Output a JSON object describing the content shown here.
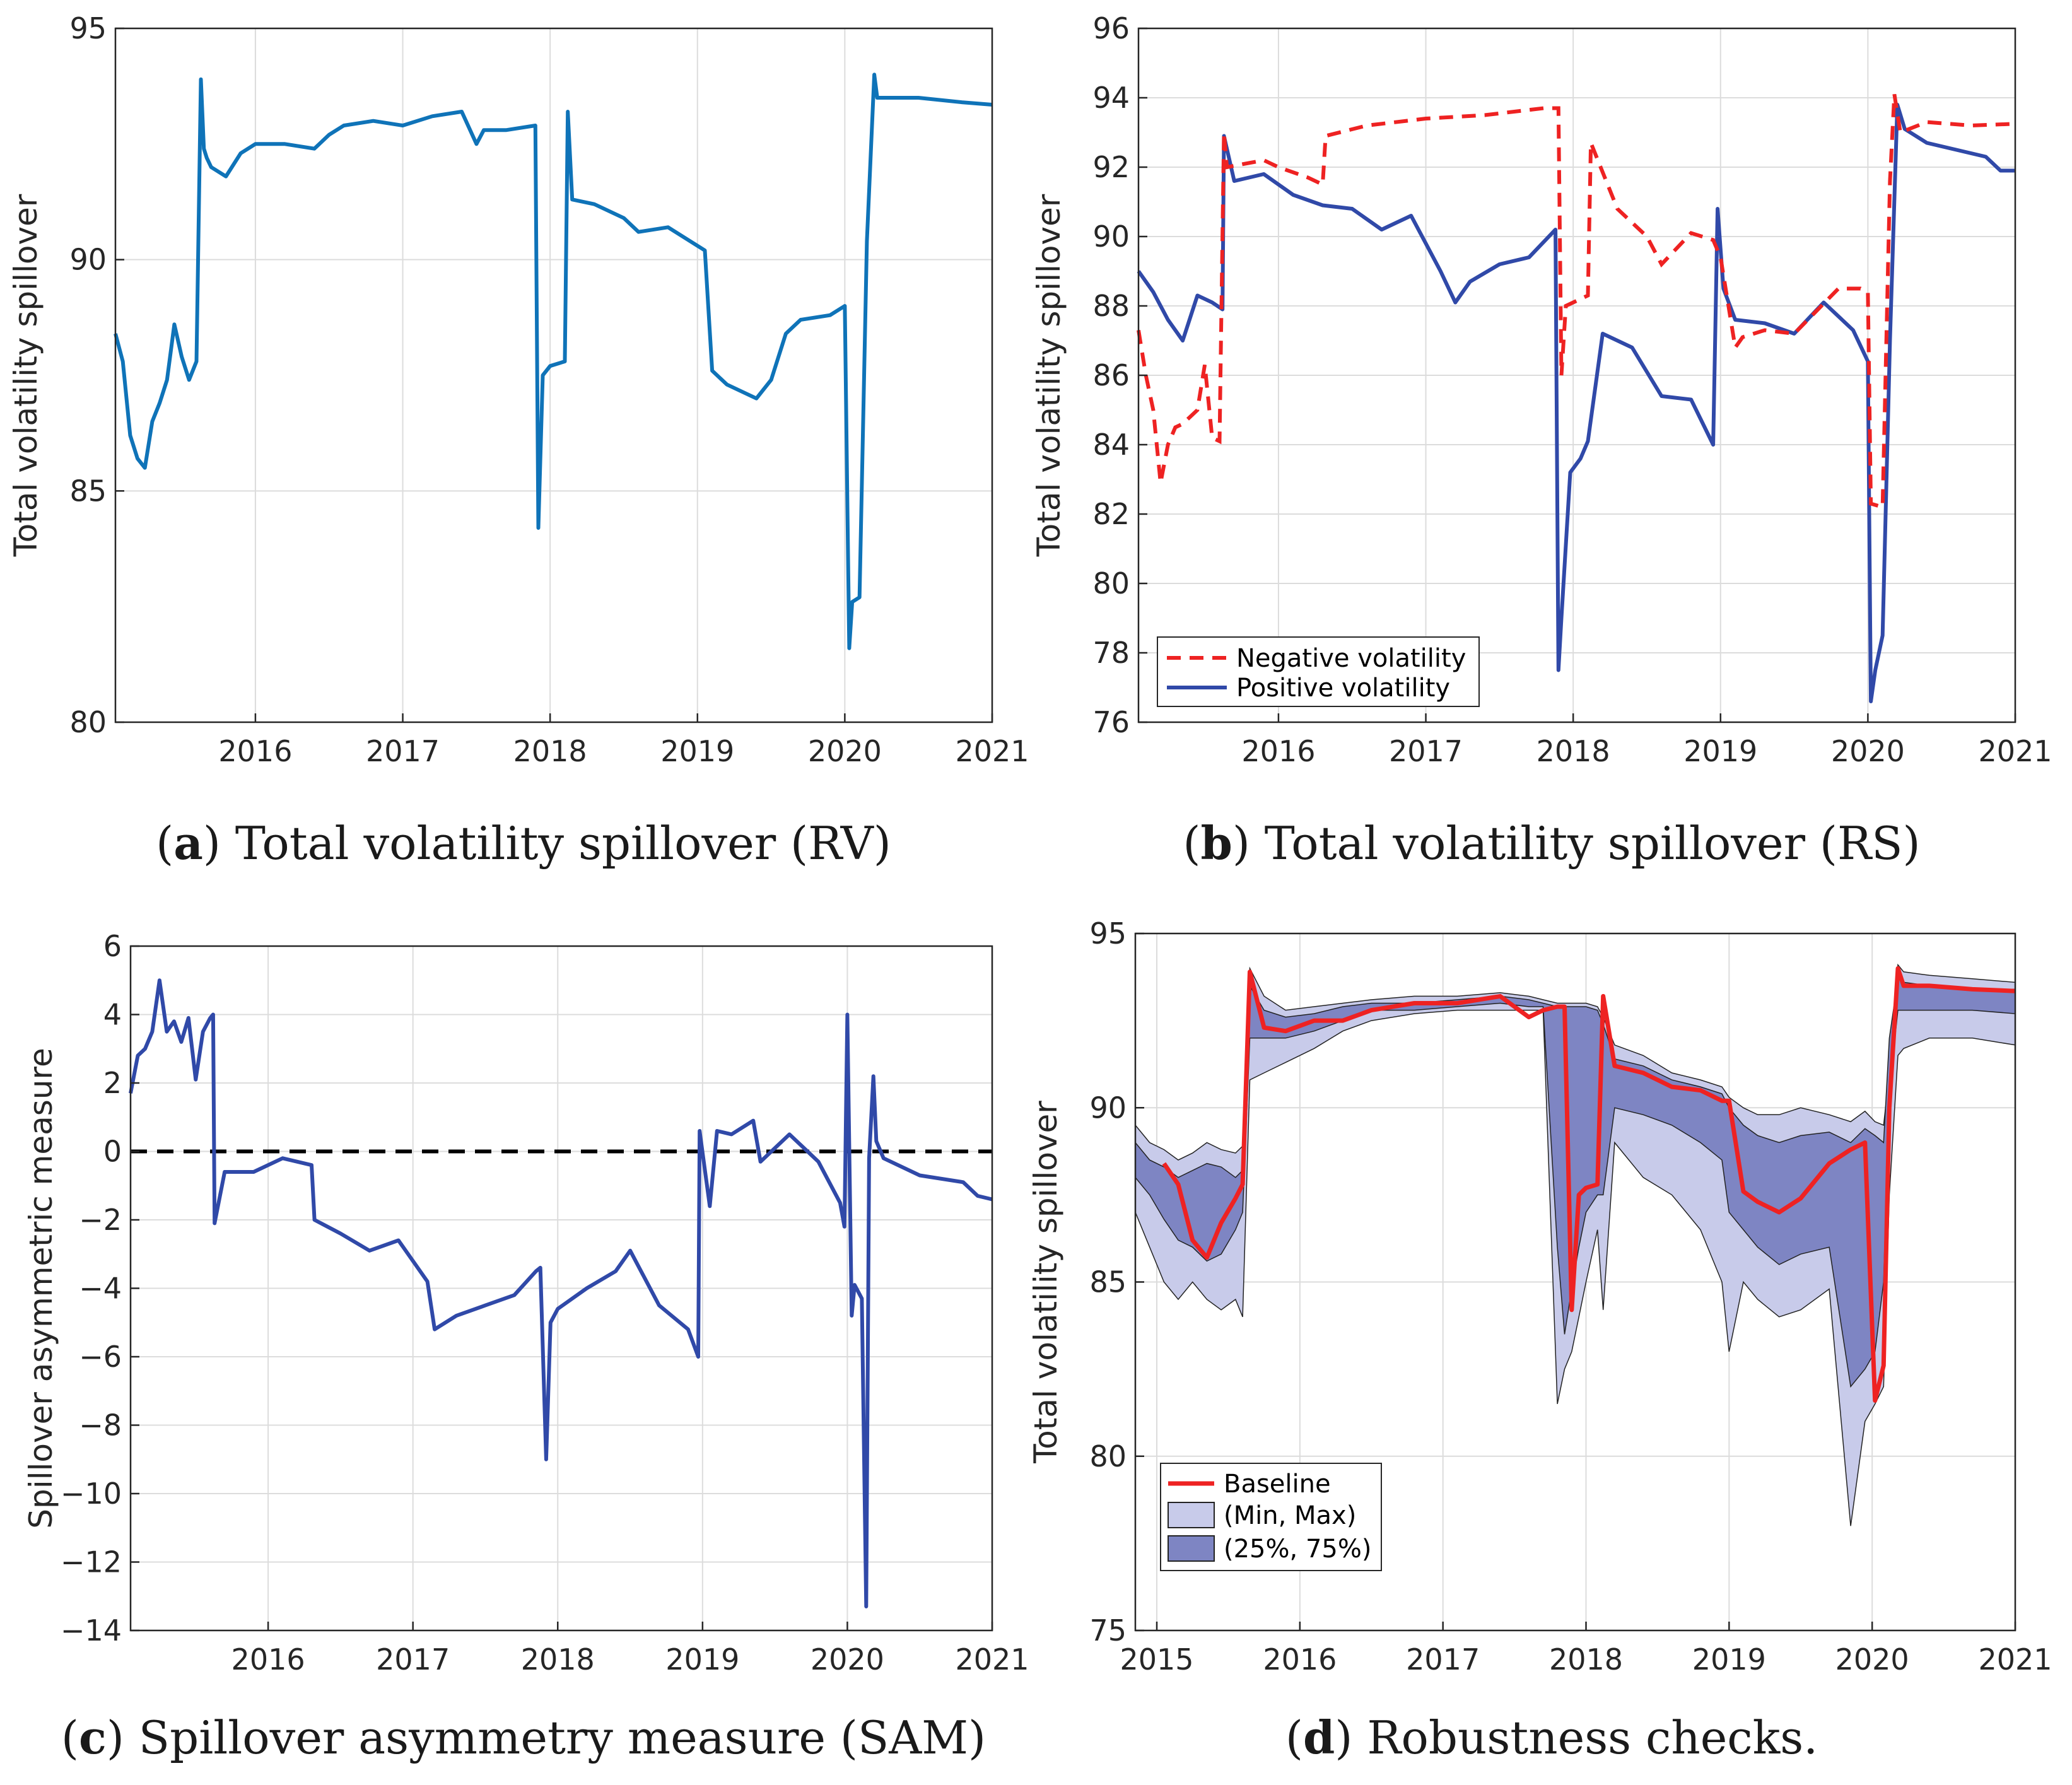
{
  "colors": {
    "rv_line": "#0f73b8",
    "positive": "#3049a8",
    "negative": "#ee2222",
    "sam_line": "#3049a8",
    "baseline": "#ee2222",
    "minmax_fill": "#c8cbea",
    "iqr_fill": "#7e85c3"
  },
  "captions": {
    "a": {
      "letter": "a",
      "text": "Total volatility spillover (RV)"
    },
    "b": {
      "letter": "b",
      "text": "Total volatility spillover (RS)"
    },
    "c": {
      "letter": "c",
      "text": "Spillover asymmetry measure (SAM)"
    },
    "d": {
      "letter": "d",
      "text": "Robustness checks."
    }
  },
  "chart_data": [
    {
      "id": "a",
      "type": "line",
      "title": "",
      "xlabel": "",
      "ylabel": "Total volatility spillover",
      "xlim": [
        2015.05,
        2021.0
      ],
      "ylim": [
        80,
        95
      ],
      "xticks": [
        2016,
        2017,
        2018,
        2019,
        2020,
        2021
      ],
      "xtick_labels": [
        "2016",
        "2017",
        "2018",
        "2019",
        "2020",
        "2021"
      ],
      "yticks": [
        80,
        85,
        90,
        95
      ],
      "ytick_labels": [
        "80",
        "85",
        "90",
        "95"
      ],
      "grid": true,
      "series": [
        {
          "name": "Total volatility spillover (RV)",
          "style": "solid",
          "x": [
            2015.05,
            2015.1,
            2015.15,
            2015.2,
            2015.25,
            2015.3,
            2015.35,
            2015.4,
            2015.45,
            2015.5,
            2015.55,
            2015.6,
            2015.63,
            2015.65,
            2015.67,
            2015.7,
            2015.8,
            2015.9,
            2016.0,
            2016.2,
            2016.4,
            2016.5,
            2016.6,
            2016.8,
            2017.0,
            2017.2,
            2017.4,
            2017.5,
            2017.55,
            2017.7,
            2017.9,
            2017.92,
            2017.95,
            2018.0,
            2018.1,
            2018.12,
            2018.15,
            2018.3,
            2018.5,
            2018.6,
            2018.8,
            2019.0,
            2019.05,
            2019.1,
            2019.2,
            2019.4,
            2019.5,
            2019.6,
            2019.7,
            2019.9,
            2020.0,
            2020.03,
            2020.05,
            2020.1,
            2020.15,
            2020.2,
            2020.22,
            2020.3,
            2020.5,
            2020.8,
            2021.0
          ],
          "y": [
            88.4,
            87.8,
            86.2,
            85.7,
            85.5,
            86.5,
            86.9,
            87.4,
            88.6,
            87.9,
            87.4,
            87.8,
            93.9,
            92.4,
            92.2,
            92.0,
            91.8,
            92.3,
            92.5,
            92.5,
            92.4,
            92.7,
            92.9,
            93.0,
            92.9,
            93.1,
            93.2,
            92.5,
            92.8,
            92.8,
            92.9,
            84.2,
            87.5,
            87.7,
            87.8,
            93.2,
            91.3,
            91.2,
            90.9,
            90.6,
            90.7,
            90.3,
            90.2,
            87.6,
            87.3,
            87.0,
            87.4,
            88.4,
            88.7,
            88.8,
            89.0,
            81.6,
            82.6,
            82.7,
            90.4,
            94.0,
            93.5,
            93.5,
            93.5,
            93.4,
            93.35
          ]
        }
      ]
    },
    {
      "id": "b",
      "type": "line",
      "title": "",
      "xlabel": "",
      "ylabel": "Total volatility spillover",
      "xlim": [
        2015.05,
        2021.0
      ],
      "ylim": [
        76,
        96
      ],
      "xticks": [
        2016,
        2017,
        2018,
        2019,
        2020,
        2021
      ],
      "xtick_labels": [
        "2016",
        "2017",
        "2018",
        "2019",
        "2020",
        "2021"
      ],
      "yticks": [
        76,
        78,
        80,
        82,
        84,
        86,
        88,
        90,
        92,
        94,
        96
      ],
      "ytick_labels": [
        "76",
        "78",
        "80",
        "82",
        "84",
        "86",
        "88",
        "90",
        "92",
        "94",
        "96"
      ],
      "grid": true,
      "legend": {
        "position": "bottom-left",
        "entries": [
          "Negative volatility",
          "Positive volatility"
        ]
      },
      "series": [
        {
          "name": "Negative volatility",
          "style": "dashed",
          "x": [
            2015.05,
            2015.1,
            2015.15,
            2015.2,
            2015.25,
            2015.3,
            2015.35,
            2015.45,
            2015.5,
            2015.55,
            2015.6,
            2015.63,
            2015.65,
            2015.9,
            2016.0,
            2016.2,
            2016.3,
            2016.32,
            2016.6,
            2017.0,
            2017.4,
            2017.8,
            2017.9,
            2017.92,
            2017.95,
            2018.05,
            2018.1,
            2018.12,
            2018.3,
            2018.5,
            2018.6,
            2018.8,
            2018.95,
            2019.0,
            2019.1,
            2019.15,
            2019.3,
            2019.5,
            2019.8,
            2019.95,
            2020.0,
            2020.02,
            2020.1,
            2020.15,
            2020.18,
            2020.22,
            2020.4,
            2020.7,
            2021.0
          ],
          "y": [
            87.3,
            86.0,
            85.0,
            82.9,
            84.0,
            84.5,
            84.6,
            85.0,
            86.3,
            84.2,
            84.1,
            93.0,
            92.0,
            92.2,
            92.0,
            91.7,
            91.5,
            92.9,
            93.2,
            93.4,
            93.5,
            93.7,
            93.7,
            86.0,
            88.0,
            88.2,
            88.3,
            92.7,
            90.8,
            90.0,
            89.2,
            90.1,
            89.9,
            89.4,
            86.8,
            87.1,
            87.3,
            87.2,
            88.5,
            88.5,
            88.4,
            82.3,
            82.2,
            91.6,
            94.1,
            93.0,
            93.3,
            93.2,
            93.25
          ]
        },
        {
          "name": "Positive volatility",
          "style": "solid",
          "x": [
            2015.05,
            2015.15,
            2015.25,
            2015.35,
            2015.45,
            2015.55,
            2015.62,
            2015.63,
            2015.7,
            2015.9,
            2016.1,
            2016.3,
            2016.5,
            2016.7,
            2016.9,
            2017.1,
            2017.2,
            2017.3,
            2017.5,
            2017.7,
            2017.88,
            2017.9,
            2017.92,
            2017.98,
            2018.05,
            2018.1,
            2018.2,
            2018.4,
            2018.6,
            2018.8,
            2018.95,
            2018.98,
            2019.02,
            2019.1,
            2019.3,
            2019.5,
            2019.7,
            2019.9,
            2020.0,
            2020.02,
            2020.05,
            2020.1,
            2020.15,
            2020.2,
            2020.25,
            2020.4,
            2020.6,
            2020.8,
            2020.9,
            2021.0
          ],
          "y": [
            89.0,
            88.4,
            87.6,
            87.0,
            88.3,
            88.1,
            87.9,
            92.9,
            91.6,
            91.8,
            91.2,
            90.9,
            90.8,
            90.2,
            90.6,
            89.0,
            88.1,
            88.7,
            89.2,
            89.4,
            90.2,
            77.5,
            79.0,
            83.2,
            83.6,
            84.1,
            87.2,
            86.8,
            85.4,
            85.3,
            84.0,
            90.8,
            88.5,
            87.6,
            87.5,
            87.2,
            88.1,
            87.3,
            86.4,
            76.6,
            77.5,
            78.5,
            87.0,
            93.8,
            93.1,
            92.7,
            92.5,
            92.3,
            91.9,
            91.9
          ]
        }
      ]
    },
    {
      "id": "c",
      "type": "line",
      "title": "",
      "xlabel": "",
      "ylabel": "Spillover asymmetric measure",
      "xlim": [
        2015.05,
        2021.0
      ],
      "ylim": [
        -14,
        6
      ],
      "xticks": [
        2016,
        2017,
        2018,
        2019,
        2020,
        2021
      ],
      "xtick_labels": [
        "2016",
        "2017",
        "2018",
        "2019",
        "2020",
        "2021"
      ],
      "yticks": [
        -14,
        -12,
        -10,
        -8,
        -6,
        -4,
        -2,
        0,
        2,
        4,
        6
      ],
      "ytick_labels": [
        "−14",
        "−12",
        "−10",
        "−8",
        "−6",
        "−4",
        "−2",
        "0",
        "2",
        "4",
        "6"
      ],
      "grid": true,
      "reference_line": {
        "y": 0,
        "style": "dashed"
      },
      "series": [
        {
          "name": "Spillover asymmetry measure (SAM)",
          "style": "solid",
          "x": [
            2015.05,
            2015.1,
            2015.15,
            2015.2,
            2015.25,
            2015.3,
            2015.35,
            2015.4,
            2015.45,
            2015.5,
            2015.55,
            2015.6,
            2015.62,
            2015.63,
            2015.7,
            2015.9,
            2016.1,
            2016.3,
            2016.32,
            2016.5,
            2016.7,
            2016.9,
            2017.1,
            2017.15,
            2017.3,
            2017.5,
            2017.7,
            2017.85,
            2017.88,
            2017.92,
            2017.95,
            2018.0,
            2018.1,
            2018.2,
            2018.4,
            2018.5,
            2018.7,
            2018.9,
            2018.97,
            2018.98,
            2019.05,
            2019.1,
            2019.2,
            2019.35,
            2019.4,
            2019.6,
            2019.8,
            2019.95,
            2019.98,
            2020.0,
            2020.03,
            2020.05,
            2020.1,
            2020.13,
            2020.15,
            2020.18,
            2020.2,
            2020.25,
            2020.5,
            2020.8,
            2020.9,
            2021.0
          ],
          "y": [
            1.7,
            2.8,
            3.0,
            3.5,
            5.0,
            3.5,
            3.8,
            3.2,
            3.9,
            2.1,
            3.5,
            3.9,
            4.0,
            -2.1,
            -0.6,
            -0.6,
            -0.2,
            -0.4,
            -2.0,
            -2.4,
            -2.9,
            -2.6,
            -3.8,
            -5.2,
            -4.8,
            -4.5,
            -4.2,
            -3.5,
            -3.4,
            -9.0,
            -5.0,
            -4.6,
            -4.3,
            -4.0,
            -3.5,
            -2.9,
            -4.5,
            -5.2,
            -6.0,
            0.6,
            -1.6,
            0.6,
            0.5,
            0.9,
            -0.3,
            0.5,
            -0.3,
            -1.5,
            -2.2,
            4.0,
            -4.8,
            -3.9,
            -4.3,
            -13.3,
            -0.2,
            2.2,
            0.3,
            -0.2,
            -0.7,
            -0.9,
            -1.3,
            -1.4
          ]
        }
      ]
    },
    {
      "id": "d",
      "type": "area",
      "title": "",
      "xlabel": "",
      "ylabel": "Total volatility spillover",
      "xlim": [
        2014.85,
        2021.0
      ],
      "ylim": [
        75,
        95
      ],
      "xticks": [
        2015,
        2016,
        2017,
        2018,
        2019,
        2020,
        2021
      ],
      "xtick_labels": [
        "2015",
        "2016",
        "2017",
        "2018",
        "2019",
        "2020",
        "2021"
      ],
      "yticks": [
        75,
        80,
        85,
        90,
        95
      ],
      "ytick_labels": [
        "75",
        "80",
        "85",
        "90",
        "95"
      ],
      "grid": true,
      "legend": {
        "position": "bottom-left",
        "entries": [
          "Baseline",
          "(Min, Max)",
          "(25%, 75%)"
        ]
      },
      "x": [
        2014.85,
        2014.95,
        2015.05,
        2015.15,
        2015.25,
        2015.35,
        2015.45,
        2015.55,
        2015.6,
        2015.65,
        2015.75,
        2015.9,
        2016.1,
        2016.3,
        2016.5,
        2016.8,
        2017.1,
        2017.4,
        2017.6,
        2017.7,
        2017.8,
        2017.85,
        2017.9,
        2017.95,
        2018.0,
        2018.08,
        2018.12,
        2018.2,
        2018.4,
        2018.6,
        2018.8,
        2018.95,
        2019.0,
        2019.1,
        2019.2,
        2019.35,
        2019.5,
        2019.7,
        2019.85,
        2019.95,
        2020.02,
        2020.08,
        2020.12,
        2020.18,
        2020.22,
        2020.4,
        2020.7,
        2021.0
      ],
      "min": [
        87.0,
        86.0,
        85.0,
        84.5,
        85.0,
        84.5,
        84.2,
        84.5,
        84.0,
        90.8,
        91.0,
        91.3,
        91.7,
        92.2,
        92.5,
        92.7,
        92.8,
        92.8,
        92.8,
        92.8,
        81.5,
        82.5,
        83.0,
        84.0,
        85.0,
        86.5,
        84.2,
        89.0,
        88.0,
        87.5,
        86.5,
        85.0,
        83.0,
        85.0,
        84.5,
        84.0,
        84.2,
        84.8,
        78.0,
        81.0,
        81.5,
        82.0,
        87.5,
        91.5,
        91.7,
        92.0,
        92.0,
        91.8
      ],
      "max": [
        89.5,
        89.0,
        88.8,
        88.5,
        88.7,
        89.0,
        88.8,
        88.7,
        88.9,
        94.0,
        93.2,
        92.8,
        92.9,
        93.0,
        93.1,
        93.2,
        93.2,
        93.3,
        93.2,
        93.1,
        93.0,
        93.0,
        93.0,
        93.0,
        93.0,
        92.9,
        92.6,
        91.8,
        91.5,
        91.0,
        90.8,
        90.6,
        90.3,
        90.0,
        89.8,
        89.8,
        90.0,
        89.8,
        89.6,
        89.9,
        89.6,
        89.5,
        91.0,
        94.1,
        93.9,
        93.8,
        93.7,
        93.6
      ],
      "p25": [
        88.0,
        87.5,
        86.8,
        86.2,
        86.0,
        85.6,
        85.8,
        86.5,
        87.0,
        92.0,
        92.0,
        92.0,
        92.2,
        92.5,
        92.8,
        92.8,
        92.9,
        93.0,
        92.9,
        92.9,
        86.0,
        83.5,
        84.8,
        86.0,
        87.0,
        87.5,
        87.5,
        90.0,
        89.8,
        89.5,
        89.0,
        88.5,
        87.0,
        86.5,
        86.0,
        85.5,
        85.8,
        86.0,
        82.0,
        82.5,
        83.0,
        85.0,
        90.5,
        92.8,
        92.8,
        92.8,
        92.8,
        92.7
      ],
      "p75": [
        89.0,
        88.5,
        88.3,
        88.0,
        88.2,
        88.4,
        88.3,
        88.0,
        88.2,
        93.5,
        92.8,
        92.6,
        92.7,
        92.9,
        93.0,
        93.0,
        93.1,
        93.2,
        93.1,
        93.0,
        92.9,
        92.9,
        92.9,
        92.9,
        92.9,
        92.8,
        92.4,
        91.4,
        91.2,
        90.8,
        90.6,
        90.4,
        90.0,
        89.5,
        89.2,
        89.0,
        89.2,
        89.3,
        89.0,
        89.4,
        89.2,
        89.0,
        92.0,
        93.7,
        93.6,
        93.5,
        93.4,
        93.4
      ],
      "baseline": [
        null,
        null,
        88.4,
        87.8,
        86.2,
        85.7,
        86.7,
        87.4,
        87.8,
        93.9,
        92.3,
        92.2,
        92.5,
        92.5,
        92.8,
        93.0,
        93.0,
        93.2,
        92.6,
        92.8,
        92.9,
        92.9,
        84.2,
        87.5,
        87.7,
        87.8,
        93.2,
        91.2,
        91.0,
        90.6,
        90.5,
        90.2,
        90.2,
        87.6,
        87.3,
        87.0,
        87.4,
        88.4,
        88.8,
        89.0,
        81.6,
        82.6,
        90.0,
        94.0,
        93.5,
        93.5,
        93.4,
        93.35
      ]
    }
  ]
}
